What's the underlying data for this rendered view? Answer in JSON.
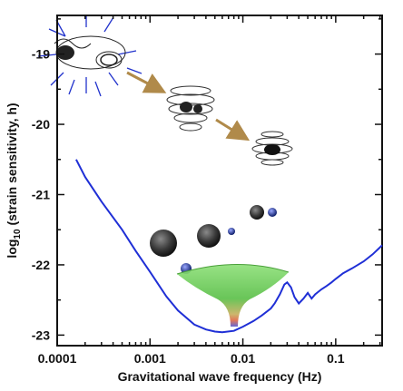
{
  "chart_data": {
    "type": "line",
    "title": "",
    "xlabel": "Gravitational wave frequency (Hz)",
    "ylabel_prefix": "log",
    "ylabel_sub": "10",
    "ylabel_suffix": " (strain sensitivity, h)",
    "xscale": "log",
    "xlim": [
      0.0001,
      0.3162
    ],
    "ylim": [
      -23.15,
      -18.45
    ],
    "xticks": [
      {
        "value": 0.0001,
        "label": "0.0001"
      },
      {
        "value": 0.001,
        "label": "0.001"
      },
      {
        "value": 0.01,
        "label": "0.01"
      },
      {
        "value": 0.1,
        "label": "0.1"
      }
    ],
    "yticks": [
      {
        "value": -19,
        "label": "-19"
      },
      {
        "value": -20,
        "label": "-20"
      },
      {
        "value": -21,
        "label": "-21"
      },
      {
        "value": -22,
        "label": "-22"
      },
      {
        "value": -23,
        "label": "-23"
      }
    ],
    "grid": false,
    "series": [
      {
        "color": "#1f2fd6",
        "x": [
          0.00016,
          0.0002,
          0.0003,
          0.0005,
          0.0007,
          0.001,
          0.0015,
          0.002,
          0.003,
          0.004,
          0.005,
          0.006,
          0.008,
          0.01,
          0.013,
          0.016,
          0.02,
          0.022,
          0.025,
          0.028,
          0.03,
          0.033,
          0.036,
          0.04,
          0.045,
          0.05,
          0.055,
          0.06,
          0.07,
          0.08,
          0.09,
          0.1,
          0.12,
          0.15,
          0.2,
          0.25,
          0.3,
          0.316
        ],
        "y": [
          -20.5,
          -20.75,
          -21.1,
          -21.5,
          -21.8,
          -22.1,
          -22.45,
          -22.65,
          -22.85,
          -22.92,
          -22.95,
          -22.96,
          -22.94,
          -22.88,
          -22.8,
          -22.72,
          -22.62,
          -22.55,
          -22.42,
          -22.28,
          -22.25,
          -22.32,
          -22.46,
          -22.55,
          -22.48,
          -22.4,
          -22.48,
          -22.42,
          -22.35,
          -22.3,
          -22.25,
          -22.2,
          -22.12,
          -22.05,
          -21.95,
          -21.85,
          -21.75,
          -21.72
        ]
      }
    ]
  }
}
